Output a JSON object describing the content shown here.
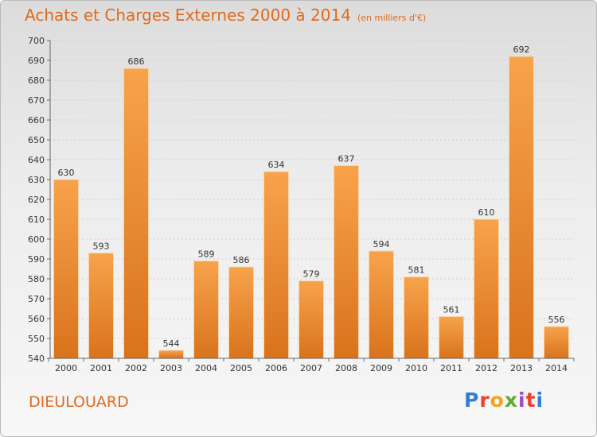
{
  "title": "Achats et Charges Externes 2000 à 2014",
  "subtitle": "(en milliers d'€)",
  "place": "DIEULOUARD",
  "logo": "Proxiti",
  "colors": {
    "bar_light": "#f7a34c",
    "bar_dark": "#d9731c",
    "title": "#e06a1c"
  },
  "chart_data": {
    "type": "bar",
    "title": "Achats et Charges Externes 2000 à 2014",
    "subtitle": "(en milliers d'€)",
    "categories": [
      "2000",
      "2001",
      "2002",
      "2003",
      "2004",
      "2005",
      "2006",
      "2007",
      "2008",
      "2009",
      "2010",
      "2011",
      "2012",
      "2013",
      "2014"
    ],
    "values": [
      630,
      593,
      686,
      544,
      589,
      586,
      634,
      579,
      637,
      594,
      581,
      561,
      610,
      692,
      556
    ],
    "ylim": [
      540,
      700
    ],
    "yticks": [
      540,
      550,
      560,
      570,
      580,
      590,
      600,
      610,
      620,
      630,
      640,
      650,
      660,
      670,
      680,
      690,
      700
    ],
    "grid": true,
    "xlabel": "",
    "ylabel": ""
  }
}
